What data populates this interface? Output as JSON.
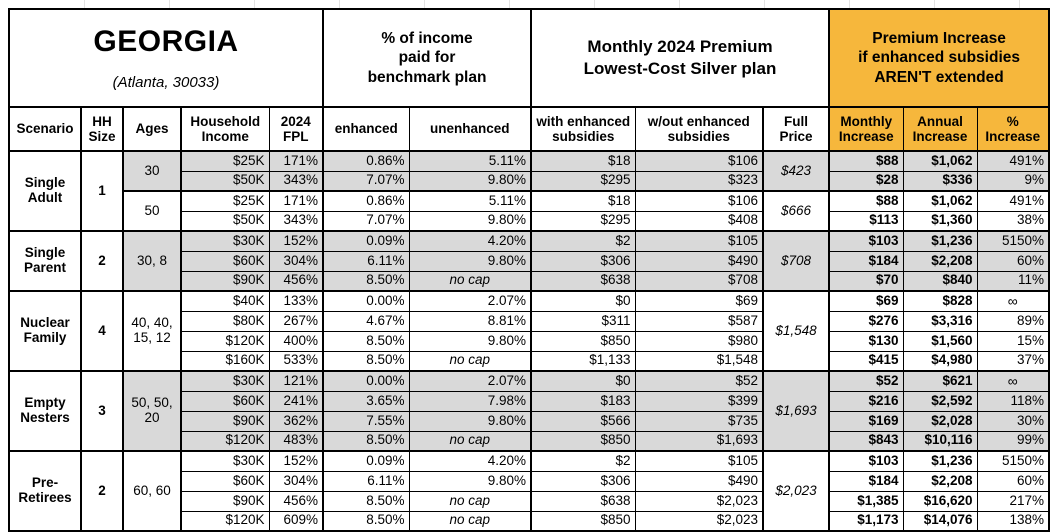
{
  "title": {
    "main": "GEORGIA",
    "sub": "(Atlanta, 30033)"
  },
  "colors": {
    "highlight": "#F6B73C",
    "row_shade": "#D9D9D9",
    "border": "#000000"
  },
  "header": {
    "pct_income_group": "% of income\npaid for\nbenchmark plan",
    "premium_group": "Monthly 2024 Premium\nLowest-Cost Silver plan",
    "increase_group": "Premium Increase\nif enhanced subsidies\nAREN'T extended",
    "columns": {
      "scenario": "Scenario",
      "hh_size": "HH\nSize",
      "ages": "Ages",
      "income": "Household\nIncome",
      "fpl": "2024\nFPL",
      "enhanced": "enhanced",
      "unenhanced": "unenhanced",
      "with_sub": "with enhanced\nsubsidies",
      "wout_sub": "w/out enhanced\nsubsidies",
      "full_price": "Full\nPrice",
      "monthly": "Monthly\nIncrease",
      "annual": "Annual\nIncrease",
      "pct": "%\nIncrease"
    }
  },
  "groups": [
    {
      "scenario": "Single Adult",
      "hh_size": "1",
      "subgroups": [
        {
          "ages": "30",
          "full_price": "$423",
          "shaded": true,
          "rows": [
            {
              "income": "$25K",
              "fpl": "171%",
              "enhanced": "0.86%",
              "unenhanced": "5.11%",
              "with_sub": "$18",
              "wout_sub": "$106",
              "monthly": "$88",
              "annual": "$1,062",
              "pct": "491%"
            },
            {
              "income": "$50K",
              "fpl": "343%",
              "enhanced": "7.07%",
              "unenhanced": "9.80%",
              "with_sub": "$295",
              "wout_sub": "$323",
              "monthly": "$28",
              "annual": "$336",
              "pct": "9%"
            }
          ]
        },
        {
          "ages": "50",
          "full_price": "$666",
          "shaded": false,
          "rows": [
            {
              "income": "$25K",
              "fpl": "171%",
              "enhanced": "0.86%",
              "unenhanced": "5.11%",
              "with_sub": "$18",
              "wout_sub": "$106",
              "monthly": "$88",
              "annual": "$1,062",
              "pct": "491%"
            },
            {
              "income": "$50K",
              "fpl": "343%",
              "enhanced": "7.07%",
              "unenhanced": "9.80%",
              "with_sub": "$295",
              "wout_sub": "$408",
              "monthly": "$113",
              "annual": "$1,360",
              "pct": "38%"
            }
          ]
        }
      ]
    },
    {
      "scenario": "Single Parent",
      "hh_size": "2",
      "subgroups": [
        {
          "ages": "30, 8",
          "full_price": "$708",
          "shaded": true,
          "rows": [
            {
              "income": "$30K",
              "fpl": "152%",
              "enhanced": "0.09%",
              "unenhanced": "4.20%",
              "with_sub": "$2",
              "wout_sub": "$105",
              "monthly": "$103",
              "annual": "$1,236",
              "pct": "5150%"
            },
            {
              "income": "$60K",
              "fpl": "304%",
              "enhanced": "6.11%",
              "unenhanced": "9.80%",
              "with_sub": "$306",
              "wout_sub": "$490",
              "monthly": "$184",
              "annual": "$2,208",
              "pct": "60%"
            },
            {
              "income": "$90K",
              "fpl": "456%",
              "enhanced": "8.50%",
              "unenhanced": "no cap",
              "with_sub": "$638",
              "wout_sub": "$708",
              "monthly": "$70",
              "annual": "$840",
              "pct": "11%"
            }
          ]
        }
      ]
    },
    {
      "scenario": "Nuclear Family",
      "hh_size": "4",
      "subgroups": [
        {
          "ages": "40, 40,\n15, 12",
          "full_price": "$1,548",
          "shaded": false,
          "rows": [
            {
              "income": "$40K",
              "fpl": "133%",
              "enhanced": "0.00%",
              "unenhanced": "2.07%",
              "with_sub": "$0",
              "wout_sub": "$69",
              "monthly": "$69",
              "annual": "$828",
              "pct": "∞"
            },
            {
              "income": "$80K",
              "fpl": "267%",
              "enhanced": "4.67%",
              "unenhanced": "8.81%",
              "with_sub": "$311",
              "wout_sub": "$587",
              "monthly": "$276",
              "annual": "$3,316",
              "pct": "89%"
            },
            {
              "income": "$120K",
              "fpl": "400%",
              "enhanced": "8.50%",
              "unenhanced": "9.80%",
              "with_sub": "$850",
              "wout_sub": "$980",
              "monthly": "$130",
              "annual": "$1,560",
              "pct": "15%"
            },
            {
              "income": "$160K",
              "fpl": "533%",
              "enhanced": "8.50%",
              "unenhanced": "no cap",
              "with_sub": "$1,133",
              "wout_sub": "$1,548",
              "monthly": "$415",
              "annual": "$4,980",
              "pct": "37%"
            }
          ]
        }
      ]
    },
    {
      "scenario": "Empty Nesters",
      "hh_size": "3",
      "subgroups": [
        {
          "ages": "50, 50,\n20",
          "full_price": "$1,693",
          "shaded": true,
          "rows": [
            {
              "income": "$30K",
              "fpl": "121%",
              "enhanced": "0.00%",
              "unenhanced": "2.07%",
              "with_sub": "$0",
              "wout_sub": "$52",
              "monthly": "$52",
              "annual": "$621",
              "pct": "∞"
            },
            {
              "income": "$60K",
              "fpl": "241%",
              "enhanced": "3.65%",
              "unenhanced": "7.98%",
              "with_sub": "$183",
              "wout_sub": "$399",
              "monthly": "$216",
              "annual": "$2,592",
              "pct": "118%"
            },
            {
              "income": "$90K",
              "fpl": "362%",
              "enhanced": "7.55%",
              "unenhanced": "9.80%",
              "with_sub": "$566",
              "wout_sub": "$735",
              "monthly": "$169",
              "annual": "$2,028",
              "pct": "30%"
            },
            {
              "income": "$120K",
              "fpl": "483%",
              "enhanced": "8.50%",
              "unenhanced": "no cap",
              "with_sub": "$850",
              "wout_sub": "$1,693",
              "monthly": "$843",
              "annual": "$10,116",
              "pct": "99%"
            }
          ]
        }
      ]
    },
    {
      "scenario": "Pre-Retirees",
      "hh_size": "2",
      "subgroups": [
        {
          "ages": "60, 60",
          "full_price": "$2,023",
          "shaded": false,
          "rows": [
            {
              "income": "$30K",
              "fpl": "152%",
              "enhanced": "0.09%",
              "unenhanced": "4.20%",
              "with_sub": "$2",
              "wout_sub": "$105",
              "monthly": "$103",
              "annual": "$1,236",
              "pct": "5150%"
            },
            {
              "income": "$60K",
              "fpl": "304%",
              "enhanced": "6.11%",
              "unenhanced": "9.80%",
              "with_sub": "$306",
              "wout_sub": "$490",
              "monthly": "$184",
              "annual": "$2,208",
              "pct": "60%"
            },
            {
              "income": "$90K",
              "fpl": "456%",
              "enhanced": "8.50%",
              "unenhanced": "no cap",
              "with_sub": "$638",
              "wout_sub": "$2,023",
              "monthly": "$1,385",
              "annual": "$16,620",
              "pct": "217%"
            },
            {
              "income": "$120K",
              "fpl": "609%",
              "enhanced": "8.50%",
              "unenhanced": "no cap",
              "with_sub": "$850",
              "wout_sub": "$2,023",
              "monthly": "$1,173",
              "annual": "$14,076",
              "pct": "138%"
            }
          ]
        }
      ]
    }
  ]
}
